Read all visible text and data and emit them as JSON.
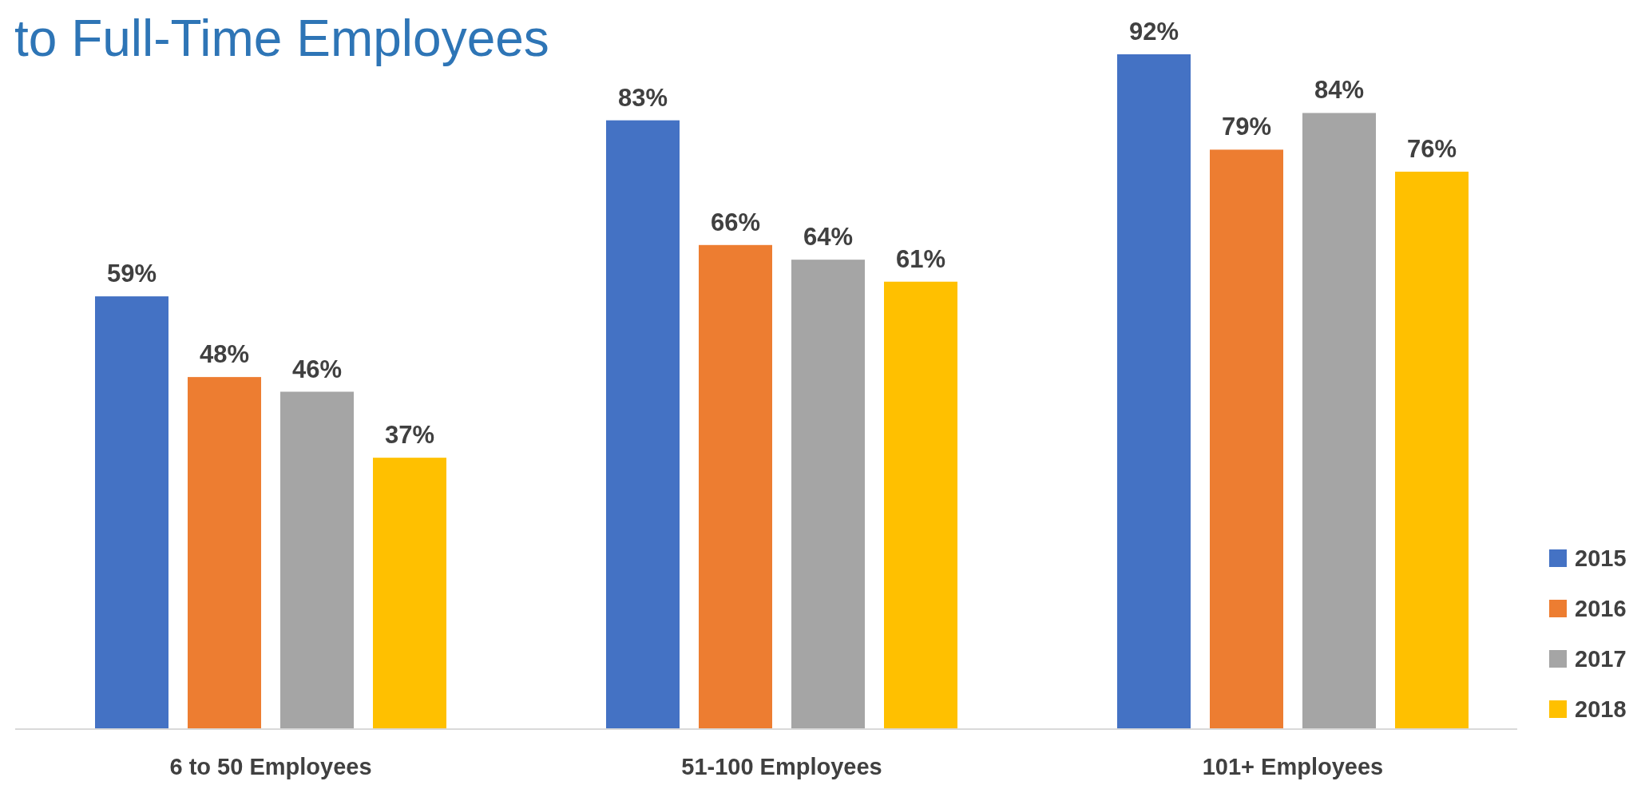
{
  "chart_data": {
    "type": "bar",
    "title": "to Full-Time Employees",
    "categories": [
      "6 to 50 Employees",
      "51-100 Employees",
      "101+ Employees"
    ],
    "series": [
      {
        "name": "2015",
        "color": "#4472c4",
        "values": [
          59,
          83,
          92
        ],
        "value_labels": [
          "59%",
          "83%",
          "92%"
        ]
      },
      {
        "name": "2016",
        "color": "#ed7d31",
        "values": [
          48,
          66,
          79
        ],
        "value_labels": [
          "48%",
          "66%",
          "79%"
        ]
      },
      {
        "name": "2017",
        "color": "#a5a5a5",
        "values": [
          46,
          64,
          84
        ],
        "value_labels": [
          "46%",
          "64%",
          "84%"
        ]
      },
      {
        "name": "2018",
        "color": "#ffc000",
        "values": [
          37,
          61,
          76
        ],
        "value_labels": [
          "37%",
          "61%",
          "76%"
        ]
      }
    ],
    "legend": "bottom right"
  }
}
